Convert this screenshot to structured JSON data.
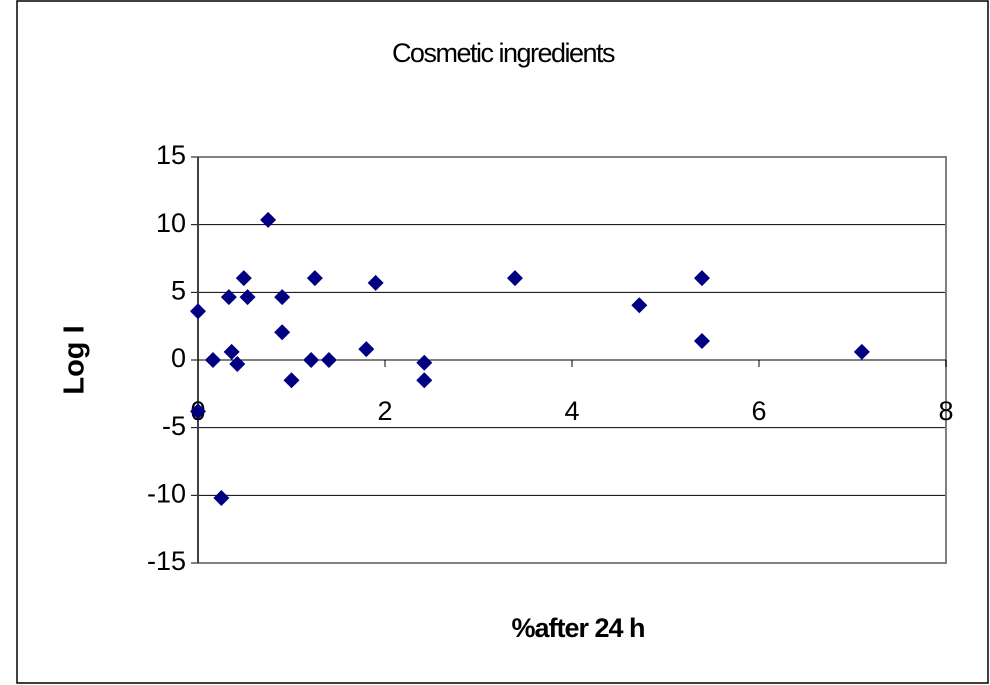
{
  "chart_data": {
    "type": "scatter",
    "title": "Cosmetic ingredients",
    "x_label": "%after 24 h",
    "y_label": "Log I",
    "series": [
      {
        "name": "Cosmetic ingredients",
        "color": "#000080",
        "x": [
          0,
          0,
          0.16,
          0.25,
          0.33,
          0.36,
          0.42,
          0.49,
          0.53,
          0.75,
          0.9,
          0.9,
          1.0,
          1.21,
          1.25,
          1.4,
          1.8,
          1.9,
          2.42,
          2.42,
          3.39,
          4.72,
          5.39,
          5.39,
          7.1
        ],
        "values": [
          3.6,
          -3.8,
          0,
          -10.2,
          4.65,
          0.6,
          -0.3,
          6.05,
          4.65,
          10.35,
          4.65,
          2.05,
          -1.5,
          0,
          6.05,
          0,
          0.8,
          5.7,
          -0.2,
          -1.5,
          6.05,
          4.05,
          6.05,
          1.4,
          0.6
        ]
      }
    ],
    "xlim": [
      0,
      8
    ],
    "xticks": [
      0,
      2,
      4,
      6,
      8
    ],
    "ylim": [
      -15,
      15
    ],
    "yticks": [
      -15,
      -10,
      -5,
      0,
      5,
      10,
      15
    ],
    "grid": true
  }
}
